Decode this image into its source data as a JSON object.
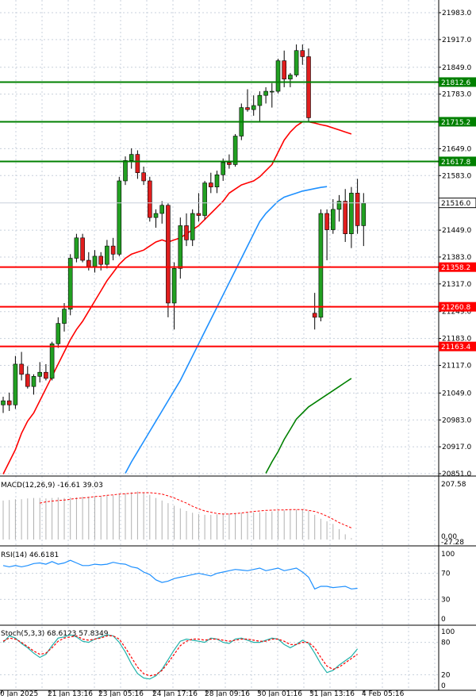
{
  "chart_data": [
    {
      "type": "candlestick",
      "panel": "price",
      "ylim": [
        20851.0,
        21983.0
      ],
      "y_ticks": [
        "21983.0",
        "21917.0",
        "21849.0",
        "21783.0",
        "21715.0",
        "21649.0",
        "21583.0",
        "21449.0",
        "21383.0",
        "21317.0",
        "21249.0",
        "21183.0",
        "21117.0",
        "21049.0",
        "20983.0",
        "20917.0",
        "20851.0"
      ],
      "current_price": {
        "value": 21516.0,
        "label": "21516.0"
      },
      "horizontal_levels": [
        {
          "value": 21812.6,
          "label": "21812.6",
          "color": "#008000"
        },
        {
          "value": 21715.2,
          "label": "21715.2",
          "color": "#008000"
        },
        {
          "value": 21617.8,
          "label": "21617.8",
          "color": "#008000"
        },
        {
          "value": 21358.2,
          "label": "21358.2",
          "color": "#ff0000"
        },
        {
          "value": 21260.8,
          "label": "21260.8",
          "color": "#ff0000"
        },
        {
          "value": 21163.4,
          "label": "21163.4",
          "color": "#ff0000"
        }
      ],
      "candles": [
        [
          21020,
          21040,
          21000,
          21030
        ],
        [
          21030,
          21050,
          21005,
          21020
        ],
        [
          21020,
          21140,
          21010,
          21120
        ],
        [
          21120,
          21150,
          21080,
          21095
        ],
        [
          21095,
          21115,
          21060,
          21065
        ],
        [
          21065,
          21095,
          21045,
          21090
        ],
        [
          21090,
          21125,
          21075,
          21100
        ],
        [
          21100,
          21120,
          21080,
          21085
        ],
        [
          21085,
          21175,
          21080,
          21170
        ],
        [
          21170,
          21235,
          21160,
          21220
        ],
        [
          21220,
          21270,
          21200,
          21255
        ],
        [
          21255,
          21390,
          21240,
          21380
        ],
        [
          21380,
          21440,
          21370,
          21430
        ],
        [
          21430,
          21440,
          21370,
          21375
        ],
        [
          21375,
          21395,
          21350,
          21360
        ],
        [
          21360,
          21400,
          21345,
          21385
        ],
        [
          21385,
          21395,
          21350,
          21365
        ],
        [
          21365,
          21425,
          21355,
          21410
        ],
        [
          21410,
          21430,
          21375,
          21390
        ],
        [
          21390,
          21580,
          21385,
          21570
        ],
        [
          21570,
          21630,
          21560,
          21620
        ],
        [
          21620,
          21650,
          21600,
          21635
        ],
        [
          21635,
          21645,
          21575,
          21590
        ],
        [
          21590,
          21605,
          21560,
          21570
        ],
        [
          21570,
          21580,
          21470,
          21480
        ],
        [
          21480,
          21500,
          21455,
          21490
        ],
        [
          21490,
          21520,
          21465,
          21510
        ],
        [
          21510,
          21515,
          21235,
          21270
        ],
        [
          21270,
          21370,
          21205,
          21355
        ],
        [
          21355,
          21480,
          21330,
          21460
        ],
        [
          21460,
          21490,
          21410,
          21425
        ],
        [
          21425,
          21500,
          21410,
          21490
        ],
        [
          21490,
          21540,
          21470,
          21485
        ],
        [
          21485,
          21570,
          21475,
          21565
        ],
        [
          21565,
          21590,
          21540,
          21555
        ],
        [
          21555,
          21595,
          21540,
          21585
        ],
        [
          21585,
          21625,
          21570,
          21615
        ],
        [
          21615,
          21635,
          21600,
          21610
        ],
        [
          21610,
          21685,
          21605,
          21680
        ],
        [
          21680,
          21760,
          21670,
          21750
        ],
        [
          21750,
          21795,
          21740,
          21745
        ],
        [
          21745,
          21780,
          21730,
          21755
        ],
        [
          21755,
          21790,
          21715,
          21780
        ],
        [
          21780,
          21800,
          21760,
          21790
        ],
        [
          21790,
          21810,
          21750,
          21790
        ],
        [
          21790,
          21870,
          21785,
          21865
        ],
        [
          21865,
          21890,
          21800,
          21820
        ],
        [
          21820,
          21835,
          21800,
          21830
        ],
        [
          21830,
          21905,
          21825,
          21890
        ],
        [
          21890,
          21905,
          21855,
          21875
        ],
        [
          21875,
          21895,
          21715,
          21725
        ],
        [
          21245,
          21295,
          21205,
          21235
        ],
        [
          21235,
          21500,
          21225,
          21490
        ],
        [
          21490,
          21500,
          21375,
          21450
        ],
        [
          21450,
          21525,
          21440,
          21500
        ],
        [
          21500,
          21535,
          21470,
          21520
        ],
        [
          21520,
          21550,
          21420,
          21440
        ],
        [
          21440,
          21555,
          21405,
          21540
        ],
        [
          21540,
          21575,
          21440,
          21460
        ],
        [
          21460,
          21540,
          21410,
          21515
        ]
      ],
      "moving_averages": [
        {
          "color": "#ff0000",
          "values": [
            20850,
            20880,
            20910,
            20950,
            20980,
            21000,
            21030,
            21060,
            21090,
            21120,
            21150,
            21180,
            21205,
            21225,
            21250,
            21275,
            21300,
            21325,
            21345,
            21365,
            21380,
            21390,
            21395,
            21400,
            21410,
            21420,
            21425,
            21420,
            21425,
            21430,
            21440,
            21450,
            21460,
            21475,
            21490,
            21505,
            21520,
            21540,
            21550,
            21560,
            21565,
            21570,
            21580,
            21595,
            21610,
            21640,
            21670,
            21690,
            21705,
            21715,
            21715,
            21712,
            21708,
            21705,
            21700,
            21695,
            21690,
            21685
          ]
        },
        {
          "color": "#1e90ff",
          "values": [
            null,
            null,
            null,
            null,
            null,
            null,
            null,
            null,
            null,
            null,
            null,
            null,
            null,
            null,
            null,
            null,
            null,
            null,
            null,
            null,
            20852,
            20880,
            20905,
            20930,
            20955,
            20980,
            21005,
            21030,
            21055,
            21080,
            21110,
            21140,
            21170,
            21200,
            21230,
            21260,
            21290,
            21320,
            21350,
            21380,
            21410,
            21440,
            21470,
            21490,
            21505,
            21520,
            21530,
            21535,
            21540,
            21545,
            21548,
            21551,
            21554,
            21556
          ]
        },
        {
          "color": "#008000",
          "values": [
            null,
            null,
            null,
            null,
            null,
            null,
            null,
            null,
            null,
            null,
            null,
            null,
            null,
            null,
            null,
            null,
            null,
            null,
            null,
            null,
            null,
            null,
            null,
            null,
            null,
            null,
            null,
            null,
            null,
            null,
            null,
            null,
            null,
            null,
            null,
            null,
            null,
            null,
            null,
            null,
            null,
            null,
            null,
            20852,
            20880,
            20905,
            20935,
            20960,
            20985,
            21000,
            21015,
            21025,
            21035,
            21045,
            21055,
            21065,
            21075,
            21085
          ]
        }
      ]
    },
    {
      "type": "bar",
      "panel": "MACD",
      "title": "MACD(12,26,9) -16.61 39.03",
      "ylim": [
        0,
        207.58
      ],
      "y_ticks": [
        "207.58",
        "0.00"
      ],
      "bottom_tick": "-27.28",
      "signal_color": "#ff0000",
      "values": [
        150,
        152,
        155,
        155,
        158,
        160,
        160,
        158,
        160,
        162,
        160,
        162,
        162,
        165,
        165,
        165,
        168,
        170,
        170,
        175,
        178,
        182,
        185,
        180,
        172,
        160,
        150,
        140,
        130,
        120,
        110,
        103,
        98,
        95,
        95,
        97,
        100,
        100,
        100,
        102,
        104,
        104,
        105,
        106,
        108,
        110,
        112,
        114,
        115,
        115,
        110,
        95,
        80,
        70,
        60,
        40,
        20,
        5
      ],
      "signal": [
        140,
        145,
        148,
        150,
        152,
        155,
        158,
        160,
        162,
        165,
        167,
        170,
        172,
        175,
        176,
        178,
        180,
        180,
        180,
        178,
        175,
        168,
        160,
        150,
        140,
        128,
        118,
        110,
        105,
        100,
        98,
        98,
        100,
        102,
        105,
        108,
        110,
        112,
        113,
        114,
        114,
        115,
        115,
        115,
        112,
        108,
        100,
        90,
        78,
        65,
        55,
        45
      ]
    },
    {
      "type": "line",
      "panel": "RSI",
      "title": "RSI(14) 46.6181",
      "ylim": [
        0,
        100
      ],
      "y_ticks": [
        "100",
        "70",
        "30",
        "0"
      ],
      "color": "#1e90ff",
      "values": [
        82,
        80,
        82,
        80,
        82,
        85,
        86,
        84,
        88,
        84,
        86,
        90,
        86,
        82,
        82,
        84,
        83,
        84,
        87,
        85,
        84,
        80,
        78,
        72,
        68,
        60,
        56,
        58,
        62,
        64,
        66,
        68,
        70,
        68,
        66,
        70,
        72,
        74,
        76,
        75,
        74,
        76,
        78,
        74,
        76,
        78,
        74,
        76,
        78,
        72,
        64,
        46,
        50,
        50,
        48,
        49,
        50,
        46,
        47
      ]
    },
    {
      "type": "line",
      "panel": "Stochastic",
      "title": "Stoch(5,3,3) 68.6123 57.8349",
      "ylim": [
        0,
        100
      ],
      "y_ticks": [
        "100",
        "80",
        "20",
        "0"
      ],
      "series": [
        {
          "color": "#20b2aa",
          "values": [
            80,
            92,
            88,
            78,
            70,
            60,
            52,
            58,
            74,
            88,
            90,
            94,
            90,
            82,
            80,
            86,
            90,
            94,
            92,
            80,
            62,
            40,
            22,
            14,
            12,
            18,
            30,
            48,
            66,
            82,
            86,
            84,
            82,
            80,
            88,
            86,
            80,
            78,
            86,
            88,
            84,
            80,
            80,
            84,
            88,
            86,
            76,
            70,
            76,
            84,
            78,
            60,
            40,
            24,
            28,
            38,
            46,
            54,
            68
          ]
        },
        {
          "color": "#ff0000",
          "values": [
            82,
            88,
            86,
            80,
            72,
            64,
            58,
            60,
            70,
            82,
            88,
            90,
            92,
            86,
            84,
            86,
            88,
            92,
            92,
            86,
            70,
            52,
            34,
            22,
            18,
            20,
            28,
            42,
            58,
            74,
            82,
            86,
            86,
            84,
            86,
            86,
            84,
            82,
            84,
            86,
            86,
            84,
            82,
            82,
            86,
            86,
            82,
            76,
            76,
            80,
            80,
            70,
            52,
            36,
            30,
            34,
            42,
            50,
            58
          ]
        }
      ]
    }
  ],
  "x_ticks": [
    "0 Jan 2025",
    "21 Jan 13:16",
    "23 Jan 05:16",
    "24 Jan 17:16",
    "28 Jan 09:16",
    "30 Jan 01:16",
    "31 Jan 13:16",
    "4 Feb 05:16"
  ]
}
